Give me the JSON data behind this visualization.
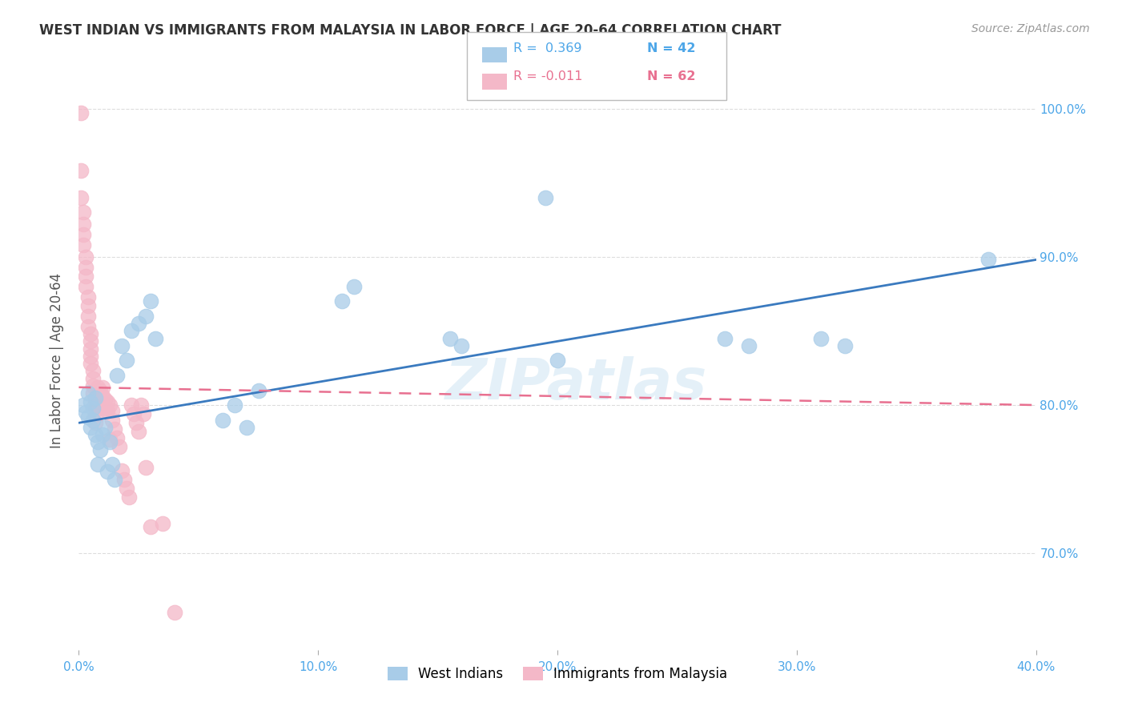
{
  "title": "WEST INDIAN VS IMMIGRANTS FROM MALAYSIA IN LABOR FORCE | AGE 20-64 CORRELATION CHART",
  "source": "Source: ZipAtlas.com",
  "ylabel": "In Labor Force | Age 20-64",
  "xlim": [
    0.0,
    0.4
  ],
  "ylim": [
    0.635,
    1.025
  ],
  "xticks": [
    0.0,
    0.1,
    0.2,
    0.3,
    0.4
  ],
  "xtick_labels": [
    "0.0%",
    "10.0%",
    "20.0%",
    "30.0%",
    "40.0%"
  ],
  "yticks": [
    0.7,
    0.8,
    0.9,
    1.0
  ],
  "ytick_labels": [
    "70.0%",
    "80.0%",
    "90.0%",
    "100.0%"
  ],
  "background_color": "#ffffff",
  "grid_color": "#dddddd",
  "blue_color": "#a8cce8",
  "pink_color": "#f4b8c8",
  "blue_line_color": "#3a7abf",
  "pink_line_color": "#e87090",
  "legend_blue_R": "R =  0.369",
  "legend_blue_N": "N = 42",
  "legend_pink_R": "R = -0.011",
  "legend_pink_N": "N = 62",
  "label_blue": "West Indians",
  "label_pink": "Immigrants from Malaysia",
  "watermark": "ZIPatlas",
  "blue_scatter_x": [
    0.002,
    0.003,
    0.004,
    0.004,
    0.005,
    0.005,
    0.006,
    0.006,
    0.007,
    0.007,
    0.008,
    0.008,
    0.009,
    0.01,
    0.011,
    0.012,
    0.013,
    0.014,
    0.015,
    0.016,
    0.018,
    0.02,
    0.022,
    0.025,
    0.028,
    0.03,
    0.032,
    0.06,
    0.065,
    0.07,
    0.075,
    0.11,
    0.115,
    0.155,
    0.16,
    0.195,
    0.2,
    0.27,
    0.28,
    0.31,
    0.32,
    0.38
  ],
  "blue_scatter_y": [
    0.8,
    0.795,
    0.792,
    0.808,
    0.785,
    0.802,
    0.79,
    0.798,
    0.805,
    0.78,
    0.775,
    0.76,
    0.77,
    0.78,
    0.785,
    0.755,
    0.775,
    0.76,
    0.75,
    0.82,
    0.84,
    0.83,
    0.85,
    0.855,
    0.86,
    0.87,
    0.845,
    0.79,
    0.8,
    0.785,
    0.81,
    0.87,
    0.88,
    0.845,
    0.84,
    0.94,
    0.83,
    0.845,
    0.84,
    0.845,
    0.84,
    0.898
  ],
  "pink_scatter_x": [
    0.001,
    0.001,
    0.001,
    0.002,
    0.002,
    0.002,
    0.002,
    0.003,
    0.003,
    0.003,
    0.003,
    0.004,
    0.004,
    0.004,
    0.004,
    0.005,
    0.005,
    0.005,
    0.005,
    0.005,
    0.006,
    0.006,
    0.006,
    0.006,
    0.007,
    0.007,
    0.007,
    0.007,
    0.008,
    0.008,
    0.008,
    0.009,
    0.009,
    0.009,
    0.01,
    0.01,
    0.01,
    0.011,
    0.011,
    0.012,
    0.012,
    0.013,
    0.013,
    0.014,
    0.014,
    0.015,
    0.016,
    0.017,
    0.018,
    0.019,
    0.02,
    0.021,
    0.022,
    0.023,
    0.024,
    0.025,
    0.026,
    0.027,
    0.028,
    0.03,
    0.035,
    0.04
  ],
  "pink_scatter_y": [
    0.997,
    0.958,
    0.94,
    0.93,
    0.922,
    0.915,
    0.908,
    0.9,
    0.893,
    0.887,
    0.88,
    0.873,
    0.867,
    0.86,
    0.853,
    0.848,
    0.843,
    0.838,
    0.833,
    0.828,
    0.823,
    0.818,
    0.813,
    0.808,
    0.803,
    0.798,
    0.793,
    0.788,
    0.812,
    0.806,
    0.8,
    0.81,
    0.804,
    0.798,
    0.812,
    0.806,
    0.8,
    0.804,
    0.798,
    0.802,
    0.796,
    0.8,
    0.777,
    0.796,
    0.79,
    0.784,
    0.778,
    0.772,
    0.756,
    0.75,
    0.744,
    0.738,
    0.8,
    0.794,
    0.788,
    0.782,
    0.8,
    0.794,
    0.758,
    0.718,
    0.72,
    0.66
  ],
  "blue_line_x0": 0.0,
  "blue_line_x1": 0.4,
  "blue_line_y0": 0.788,
  "blue_line_y1": 0.898,
  "pink_line_x0": 0.0,
  "pink_line_x1": 0.4,
  "pink_line_y0": 0.812,
  "pink_line_y1": 0.8
}
